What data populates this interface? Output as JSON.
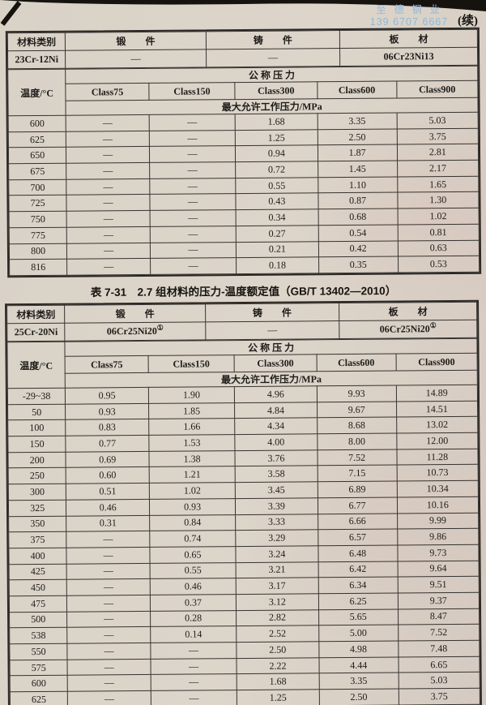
{
  "page": {
    "continued_label": "(续)"
  },
  "watermark": {
    "company": "至 德 钢 业",
    "phone": "139 6707 6667",
    "color": "#8fb9da"
  },
  "labels": {
    "material_category": "材料类别",
    "forging": "锻　　件",
    "casting": "铸　　件",
    "plate": "板　　材",
    "temp": "温度/°C",
    "nominal_pressure": "公 称 压 力",
    "max_pressure": "最大允许工作压力/MPa"
  },
  "classes": [
    "Class75",
    "Class150",
    "Class300",
    "Class600",
    "Class900"
  ],
  "table1": {
    "material": {
      "name": "23Cr-12Ni",
      "forging": "—",
      "forging_sup": "",
      "casting": "—",
      "casting_sup": "",
      "plate": "06Cr23Ni13",
      "plate_sup": ""
    },
    "rows": [
      {
        "temp": "600",
        "values": [
          "—",
          "—",
          "1.68",
          "3.35",
          "5.03"
        ]
      },
      {
        "temp": "625",
        "values": [
          "—",
          "—",
          "1.25",
          "2.50",
          "3.75"
        ]
      },
      {
        "temp": "650",
        "values": [
          "—",
          "—",
          "0.94",
          "1.87",
          "2.81"
        ]
      },
      {
        "temp": "675",
        "values": [
          "—",
          "—",
          "0.72",
          "1.45",
          "2.17"
        ]
      },
      {
        "temp": "700",
        "values": [
          "—",
          "—",
          "0.55",
          "1.10",
          "1.65"
        ]
      },
      {
        "temp": "725",
        "values": [
          "—",
          "—",
          "0.43",
          "0.87",
          "1.30"
        ]
      },
      {
        "temp": "750",
        "values": [
          "—",
          "—",
          "0.34",
          "0.68",
          "1.02"
        ]
      },
      {
        "temp": "775",
        "values": [
          "—",
          "—",
          "0.27",
          "0.54",
          "0.81"
        ]
      },
      {
        "temp": "800",
        "values": [
          "—",
          "—",
          "0.21",
          "0.42",
          "0.63"
        ]
      },
      {
        "temp": "816",
        "values": [
          "—",
          "—",
          "0.18",
          "0.35",
          "0.53"
        ]
      }
    ]
  },
  "table2": {
    "title": "表 7-31　2.7 组材料的压力-温度额定值（GB/T 13402—2010）",
    "material": {
      "name": "25Cr-20Ni",
      "forging": "06Cr25Ni20",
      "forging_sup": "①",
      "casting": "—",
      "casting_sup": "",
      "plate": "06Cr25Ni20",
      "plate_sup": "①"
    },
    "rows": [
      {
        "temp": "-29~38",
        "values": [
          "0.95",
          "1.90",
          "4.96",
          "9.93",
          "14.89"
        ]
      },
      {
        "temp": "50",
        "values": [
          "0.93",
          "1.85",
          "4.84",
          "9.67",
          "14.51"
        ]
      },
      {
        "temp": "100",
        "values": [
          "0.83",
          "1.66",
          "4.34",
          "8.68",
          "13.02"
        ]
      },
      {
        "temp": "150",
        "values": [
          "0.77",
          "1.53",
          "4.00",
          "8.00",
          "12.00"
        ]
      },
      {
        "temp": "200",
        "values": [
          "0.69",
          "1.38",
          "3.76",
          "7.52",
          "11.28"
        ]
      },
      {
        "temp": "250",
        "values": [
          "0.60",
          "1.21",
          "3.58",
          "7.15",
          "10.73"
        ]
      },
      {
        "temp": "300",
        "values": [
          "0.51",
          "1.02",
          "3.45",
          "6.89",
          "10.34"
        ]
      },
      {
        "temp": "325",
        "values": [
          "0.46",
          "0.93",
          "3.39",
          "6.77",
          "10.16"
        ]
      },
      {
        "temp": "350",
        "values": [
          "0.31",
          "0.84",
          "3.33",
          "6.66",
          "9.99"
        ]
      },
      {
        "temp": "375",
        "values": [
          "—",
          "0.74",
          "3.29",
          "6.57",
          "9.86"
        ]
      },
      {
        "temp": "400",
        "values": [
          "—",
          "0.65",
          "3.24",
          "6.48",
          "9.73"
        ]
      },
      {
        "temp": "425",
        "values": [
          "—",
          "0.55",
          "3.21",
          "6.42",
          "9.64"
        ]
      },
      {
        "temp": "450",
        "values": [
          "—",
          "0.46",
          "3.17",
          "6.34",
          "9.51"
        ]
      },
      {
        "temp": "475",
        "values": [
          "—",
          "0.37",
          "3.12",
          "6.25",
          "9.37"
        ]
      },
      {
        "temp": "500",
        "values": [
          "—",
          "0.28",
          "2.82",
          "5.65",
          "8.47"
        ]
      },
      {
        "temp": "538",
        "values": [
          "—",
          "0.14",
          "2.52",
          "5.00",
          "7.52"
        ]
      },
      {
        "temp": "550",
        "values": [
          "—",
          "—",
          "2.50",
          "4.98",
          "7.48"
        ]
      },
      {
        "temp": "575",
        "values": [
          "—",
          "—",
          "2.22",
          "4.44",
          "6.65"
        ]
      },
      {
        "temp": "600",
        "values": [
          "—",
          "—",
          "1.68",
          "3.35",
          "5.03"
        ]
      },
      {
        "temp": "625",
        "values": [
          "—",
          "—",
          "1.25",
          "2.50",
          "3.75"
        ]
      }
    ]
  }
}
